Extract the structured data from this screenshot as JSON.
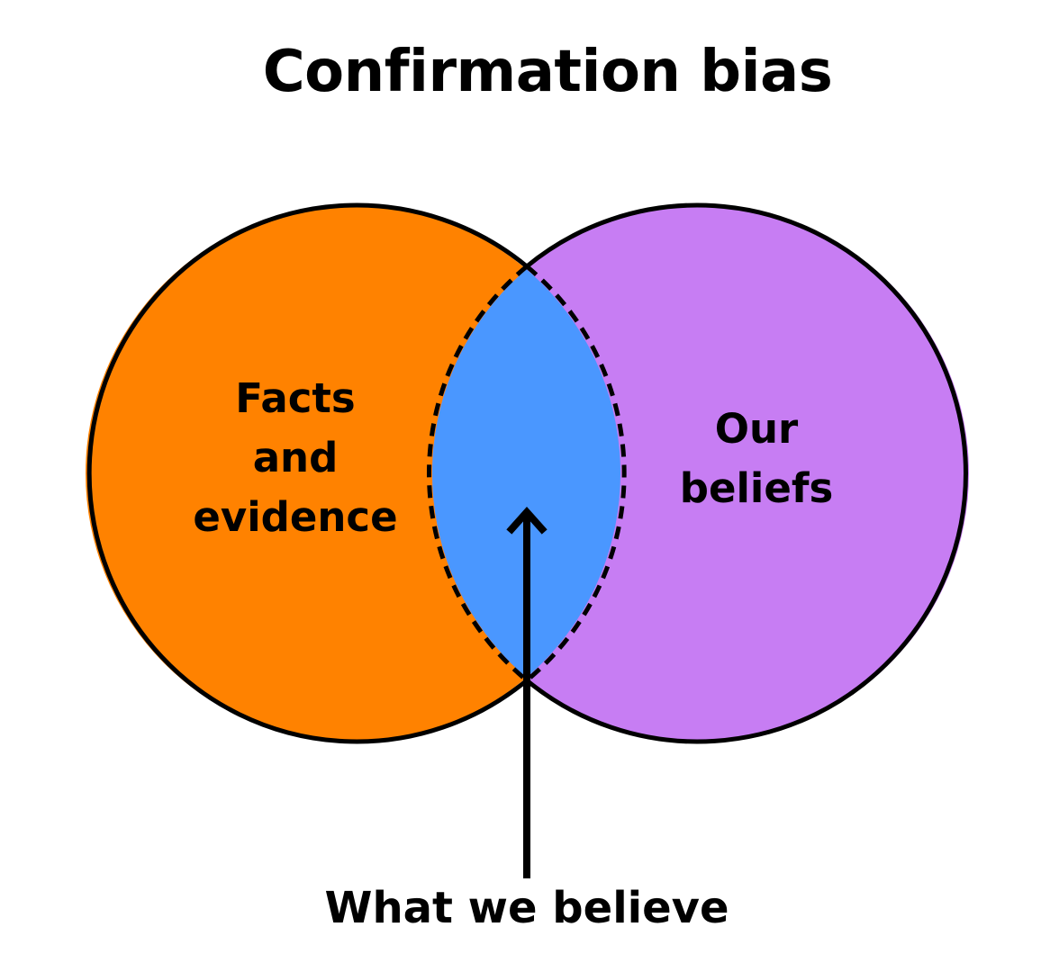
{
  "title": "Confirmation bias",
  "sets": {
    "left": {
      "lines": [
        "Facts",
        "and",
        "evidence"
      ],
      "color": "#FF8200"
    },
    "right": {
      "lines": [
        "Our",
        "beliefs"
      ],
      "color": "#C77DF3"
    },
    "intersection": {
      "label": "What we believe",
      "color": "#4A97FF"
    }
  },
  "outline_color": "#000000",
  "background": "#FFFFFF"
}
